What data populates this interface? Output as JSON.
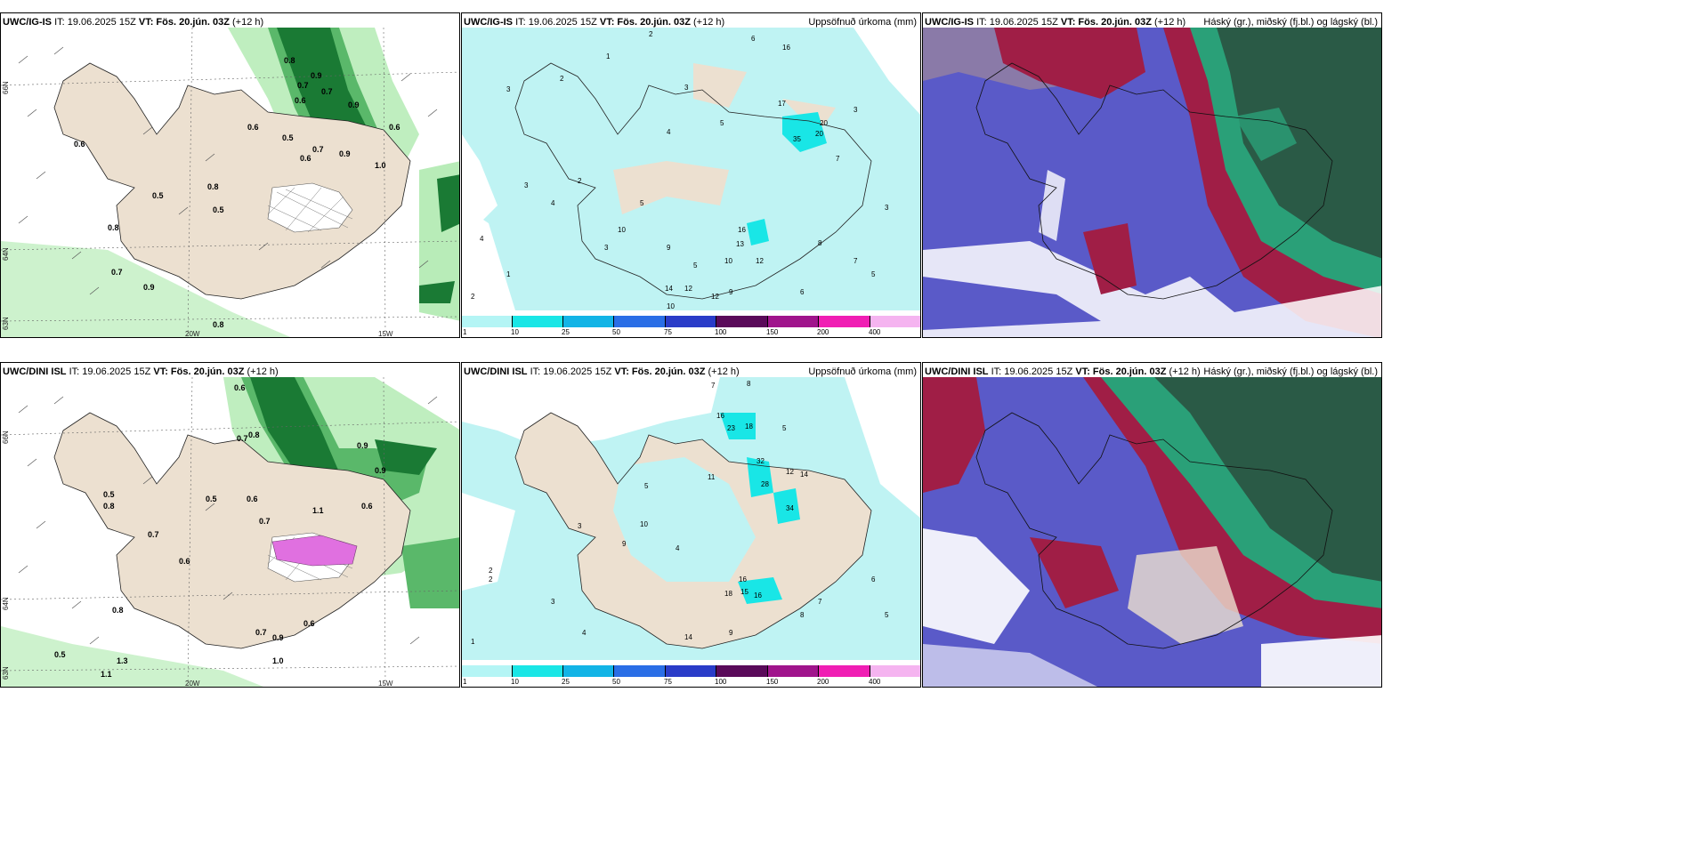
{
  "panels": {
    "top_wind": {
      "model": "UWC/IG-IS",
      "it": "IT: 19.06.2025 15Z",
      "vt": "VT: Fös. 20.jún. 03Z",
      "lead": "(+12 h)"
    },
    "top_precip": {
      "model": "UWC/IG-IS",
      "it": "IT: 19.06.2025 15Z",
      "vt": "VT: Fös. 20.jún. 03Z",
      "lead": "(+12 h)",
      "right_title": "Uppsöfnuð úrkoma (mm)"
    },
    "top_cloud": {
      "model": "UWC/IG-IS",
      "it": "IT: 19.06.2025 15Z",
      "vt": "VT: Fös. 20.jún. 03Z",
      "lead": "(+12 h)",
      "right_title": "Háský (gr.), miðský (fj.bl.) og lágský (bl.)"
    },
    "bot_wind": {
      "model": "UWC/DINI ISL",
      "it": "IT: 19.06.2025 15Z",
      "vt": "VT: Fös. 20.jún. 03Z",
      "lead": "(+12 h)"
    },
    "bot_precip": {
      "model": "UWC/DINI ISL",
      "it": "IT: 19.06.2025 15Z",
      "vt": "VT: Fös. 20.jún. 03Z",
      "lead": "(+12 h)",
      "right_title": "Uppsöfnuð úrkoma (mm)"
    },
    "bot_cloud": {
      "model": "UWC/DINI ISL",
      "it": "IT: 19.06.2025 15Z",
      "vt": "VT: Fös. 20.jún. 03Z",
      "lead": "(+12 h)",
      "right_title": "Háský (gr.), miðský (fj.bl.) og lágský (bl.)"
    }
  },
  "axes": {
    "lat_66": "66N",
    "lat_64": "64N",
    "lat_63": "63N",
    "lon_20": "20W",
    "lon_15": "15W"
  },
  "colorbar": {
    "ticks": [
      "1",
      "10",
      "25",
      "50",
      "75",
      "100",
      "150",
      "200",
      "400"
    ],
    "colors": [
      "#b4f5f5",
      "#19e6e6",
      "#12b4e6",
      "#2a6ee6",
      "#2a3cc8",
      "#5a0a5a",
      "#a0148c",
      "#f01eb4",
      "#f5b4f0"
    ]
  },
  "colors": {
    "land": "#ece0d0",
    "precip_light": "#bff3f3",
    "wind_green_light": "#b8ecb8",
    "wind_green_dark": "#0c5a20",
    "cloud_blue": "#5a5ac8",
    "cloud_red": "#a01e46",
    "cloud_green": "#2aa078",
    "cloud_darkgreen": "#2a5a46"
  },
  "wind_values_top": [
    "0.6",
    "0.6",
    "0.5",
    "0.8",
    "0.5",
    "0.6",
    "0.7",
    "0.9",
    "0.7",
    "0.9",
    "0.8",
    "0.6",
    "0.5",
    "0.8",
    "0.7",
    "0.9",
    "1.0",
    "0.6",
    "0.7",
    "0.8",
    "0.9"
  ],
  "wind_values_bot": [
    "0.6",
    "0.7",
    "0.8",
    "0.5",
    "0.8",
    "0.5",
    "0.6",
    "0.7",
    "0.9",
    "1.1",
    "0.6",
    "0.7",
    "0.9",
    "0.6",
    "0.8",
    "1.0",
    "0.5",
    "1.3",
    "1.1",
    "0.7",
    "0.9",
    "0.6"
  ],
  "precip_values_top": [
    "2",
    "6",
    "1",
    "3",
    "2",
    "3",
    "4",
    "16",
    "17",
    "20",
    "35",
    "20",
    "5",
    "3",
    "7",
    "2",
    "4",
    "5",
    "3",
    "10",
    "16",
    "13",
    "12",
    "10",
    "9",
    "5",
    "12",
    "14",
    "12",
    "9",
    "10",
    "8",
    "6",
    "7",
    "5",
    "3",
    "4",
    "3",
    "2",
    "1"
  ],
  "precip_values_bot": [
    "7",
    "8",
    "16",
    "23",
    "18",
    "5",
    "32",
    "28",
    "12",
    "34",
    "14",
    "11",
    "5",
    "9",
    "4",
    "2",
    "3",
    "10",
    "16",
    "18",
    "16",
    "15",
    "14",
    "9",
    "8",
    "7",
    "6",
    "5",
    "4",
    "3",
    "2",
    "1"
  ]
}
